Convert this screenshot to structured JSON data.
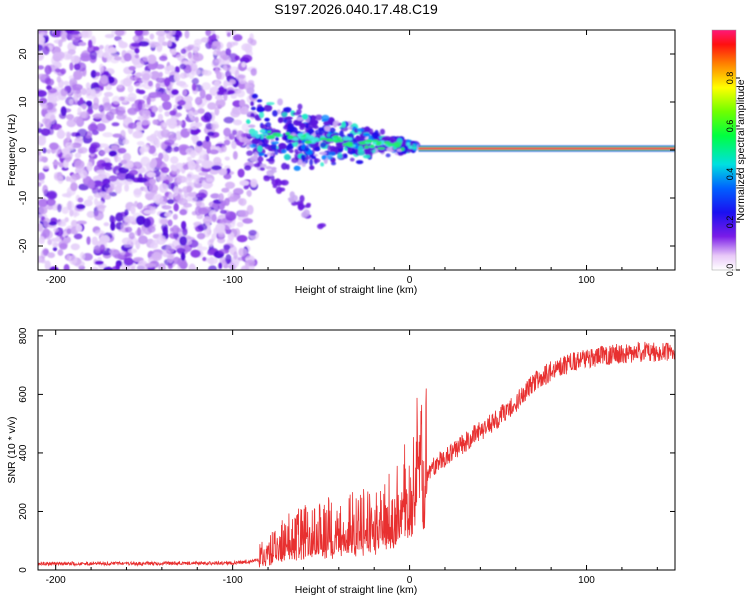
{
  "title": "S197.2026.040.17.48.C19",
  "chart_data": [
    {
      "type": "heatmap",
      "xlabel": "Height of straight line (km)",
      "ylabel": "Frequency (Hz)",
      "xlim": [
        -210,
        150
      ],
      "ylim": [
        -25,
        25
      ],
      "xticks": [
        -200,
        -100,
        0,
        100
      ],
      "yticks": [
        -20,
        -10,
        0,
        10,
        20
      ],
      "colorbar": {
        "label": "Normalized spectral amplitude",
        "range": [
          0,
          1
        ],
        "ticks": [
          0.0,
          0.2,
          0.4,
          0.6,
          0.8
        ]
      },
      "description_points": {
        "noise_region_km": [
          -210,
          -90
        ],
        "converging_region_km": [
          -90,
          5
        ],
        "steady_line_freq_hz": 0.3,
        "steady_line_start_km": 5
      }
    },
    {
      "type": "line",
      "xlabel": "Height of straight line (km)",
      "ylabel": "SNR (10 * v/v)",
      "xlim": [
        -210,
        150
      ],
      "ylim": [
        0,
        820
      ],
      "xticks": [
        -200,
        -100,
        0,
        100
      ],
      "yticks": [
        0,
        200,
        400,
        600,
        800
      ],
      "series": [
        {
          "name": "SNR",
          "color": "#e83030",
          "x": [
            -210,
            -150,
            -100,
            -90,
            -80,
            -70,
            -60,
            -50,
            -40,
            -30,
            -20,
            -10,
            0,
            10,
            20,
            30,
            40,
            50,
            60,
            70,
            80,
            90,
            100,
            110,
            120,
            130,
            140,
            150
          ],
          "y": [
            22,
            22,
            24,
            28,
            45,
            75,
            95,
            105,
            110,
            120,
            130,
            160,
            240,
            330,
            385,
            430,
            475,
            520,
            570,
            640,
            680,
            705,
            720,
            735,
            740,
            745,
            745,
            740
          ]
        }
      ]
    }
  ]
}
